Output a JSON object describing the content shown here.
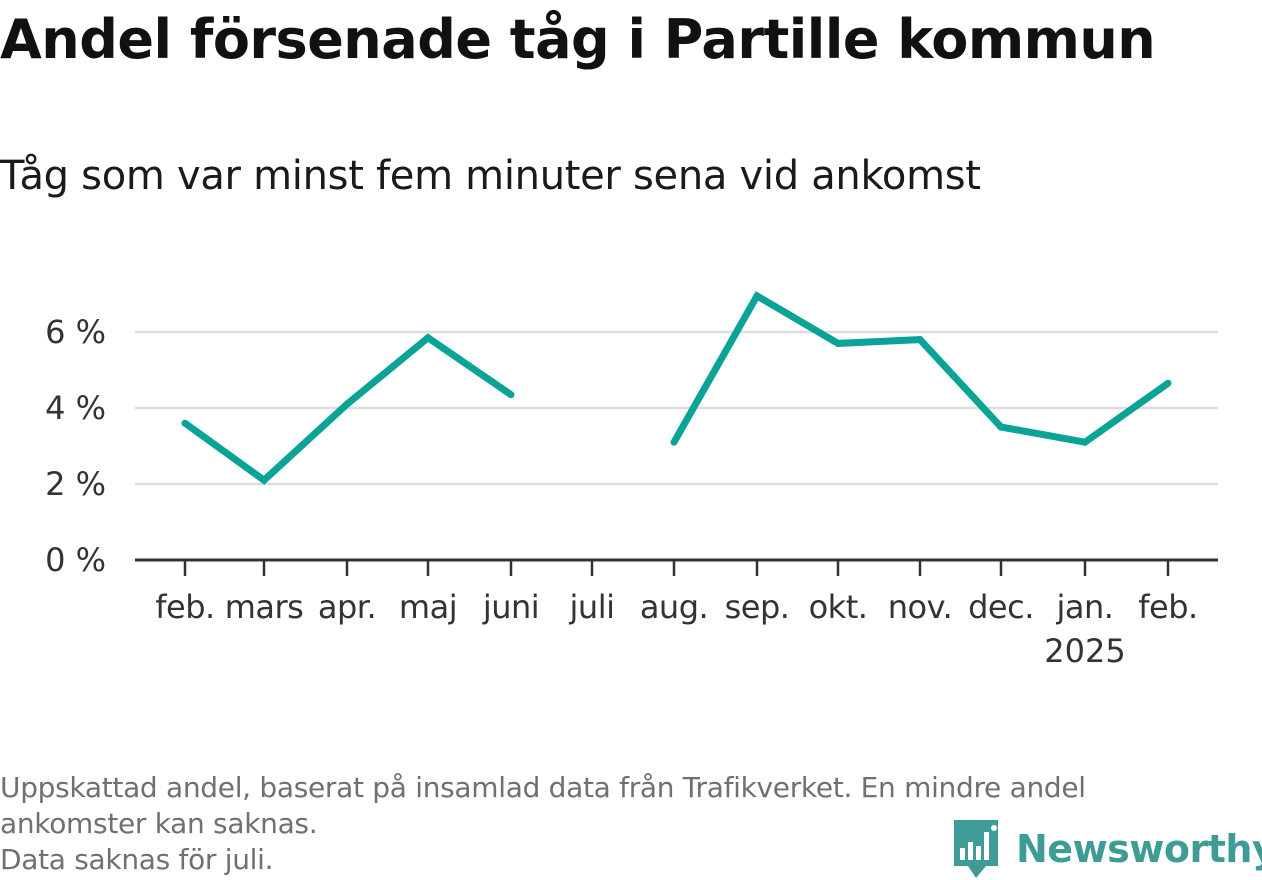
{
  "header": {
    "title": "Andel försenade tåg i Partille kommun",
    "subtitle": "Tåg som var minst fem minuter sena vid ankomst"
  },
  "chart_data": {
    "type": "line",
    "title": "Andel försenade tåg i Partille kommun",
    "subtitle": "Tåg som var minst fem minuter sena vid ankomst",
    "xlabel": "",
    "ylabel": "",
    "categories": [
      "feb.",
      "mars",
      "apr.",
      "maj",
      "juni",
      "juli",
      "aug.",
      "sep.",
      "okt.",
      "nov.",
      "dec.",
      "jan.",
      "feb."
    ],
    "year_label": {
      "category_index": 11,
      "text": "2025"
    },
    "series": [
      {
        "values": [
          3.6,
          2.1,
          4.1,
          5.85,
          4.35,
          null,
          3.1,
          6.95,
          5.7,
          5.8,
          3.5,
          3.1,
          4.65
        ],
        "color": "#0aa398"
      }
    ],
    "yticks": [
      0,
      2,
      4,
      6
    ],
    "ytick_labels": [
      "0 %",
      "2 %",
      "4 %",
      "6 %"
    ],
    "ylim": [
      0,
      7.5
    ],
    "grid": true,
    "legend": "none"
  },
  "footer": {
    "lines": [
      "Uppskattad andel, baserat på insamlad data från Trafikverket. En mindre andel",
      "ankomster kan saknas.",
      "Data saknas för juli."
    ]
  },
  "logo": {
    "text": "Newsworthy",
    "icon": "newsworthy-logo-icon",
    "color": "#3e9b96"
  },
  "colors": {
    "line": "#0aa398",
    "grid": "#dcdcdc",
    "axis": "#333333",
    "tick_text": "#333333"
  }
}
